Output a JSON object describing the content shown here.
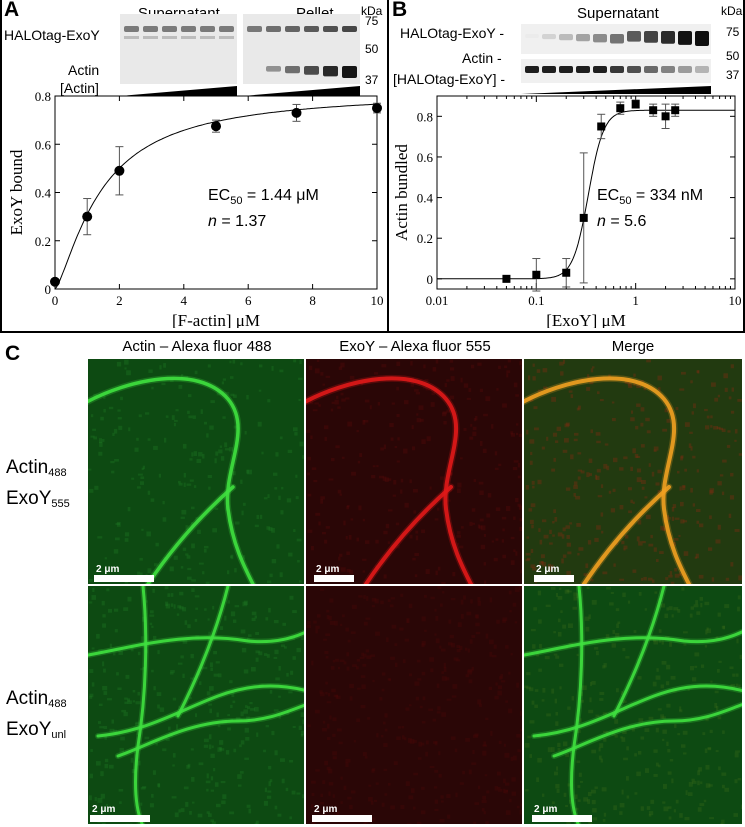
{
  "panels": {
    "a": {
      "letter": "A"
    },
    "b": {
      "letter": "B"
    },
    "c": {
      "letter": "C"
    }
  },
  "blot_a": {
    "supernatant_label": "Supernatant",
    "pellet_label": "Pellet",
    "kda_label": "kDa",
    "band_halotag": "HALOtag-ExoY",
    "band_actin": "Actin",
    "titration_label": "[Actin]",
    "markers": [
      "75",
      "50",
      "37"
    ]
  },
  "blot_b": {
    "supernatant_label": "Supernatant",
    "kda_label": "kDa",
    "band_halotag": "HALOtag-ExoY -",
    "band_actin": "Actin -",
    "titration_label": "[HALOtag-ExoY] -",
    "markers": [
      "75",
      "50",
      "37"
    ]
  },
  "chart_data": [
    {
      "type": "scatter",
      "panel": "A",
      "xlabel": "[F-actin] μM",
      "ylabel": "ExoY bound",
      "xlim": [
        0,
        10
      ],
      "ylim": [
        0,
        0.8
      ],
      "xticks": [
        "0",
        "2",
        "4",
        "6",
        "8",
        "10"
      ],
      "yticks": [
        "0",
        "0.2",
        "0.4",
        "0.6",
        "0.8"
      ],
      "x": [
        0,
        1,
        2,
        5,
        7.5,
        10
      ],
      "y": [
        0.03,
        0.3,
        0.49,
        0.675,
        0.73,
        0.75
      ],
      "error": [
        0.01,
        0.075,
        0.1,
        0.025,
        0.035,
        0.02
      ],
      "fit": {
        "model": "hill",
        "vmax": 0.82,
        "ec50": 1.44,
        "n": 1.37
      },
      "annotation": {
        "ec50_prefix": "EC",
        "ec50_sub": "50",
        "ec50_value": " = 1.44 μM",
        "n_italic": "n",
        "n_value": " = 1.37"
      }
    },
    {
      "type": "scatter",
      "panel": "B",
      "xlabel": "[ExoY] μM",
      "ylabel": "Actin bundled",
      "xscale": "log",
      "xlim": [
        0.01,
        10
      ],
      "ylim": [
        -0.05,
        0.9
      ],
      "xticks": [
        "0.01",
        "0.1",
        "1",
        "10"
      ],
      "yticks": [
        "0",
        "0.2",
        "0.4",
        "0.6",
        "0.8"
      ],
      "x": [
        0.05,
        0.1,
        0.2,
        0.3,
        0.45,
        0.7,
        1.0,
        1.5,
        2.0,
        2.5
      ],
      "y": [
        0.0,
        0.02,
        0.03,
        0.3,
        0.75,
        0.84,
        0.86,
        0.83,
        0.8,
        0.83
      ],
      "error": [
        0.0,
        0.08,
        0.07,
        0.32,
        0.06,
        0.03,
        0.02,
        0.03,
        0.06,
        0.03
      ],
      "fit": {
        "model": "hill",
        "vmax": 0.83,
        "ec50": 0.334,
        "n": 5.6
      },
      "annotation": {
        "ec50_prefix": "EC",
        "ec50_sub": "50",
        "ec50_value": " = 334 nM",
        "n_italic": "n",
        "n_value": " = 5.6"
      }
    }
  ],
  "microscopy": {
    "column_headers": [
      "Actin – Alexa fluor 488",
      "ExoY – Alexa fluor 555",
      "Merge"
    ],
    "rows": [
      {
        "label_main_1": "Actin",
        "label_sub_1": "488",
        "label_main_2": "ExoY",
        "label_sub_2": "555"
      },
      {
        "label_main_1": "Actin",
        "label_sub_1": "488",
        "label_main_2": "ExoY",
        "label_sub_2": "unl"
      }
    ],
    "scale_bar_label": "2 μm",
    "colors": {
      "green_bg": "#0d4a12",
      "red_bg": "#2a0606",
      "merge_bg": "#223a10",
      "green_fil": "#3fe03f",
      "red_fil": "#e01818",
      "merge_fil": "#f0a020"
    }
  }
}
